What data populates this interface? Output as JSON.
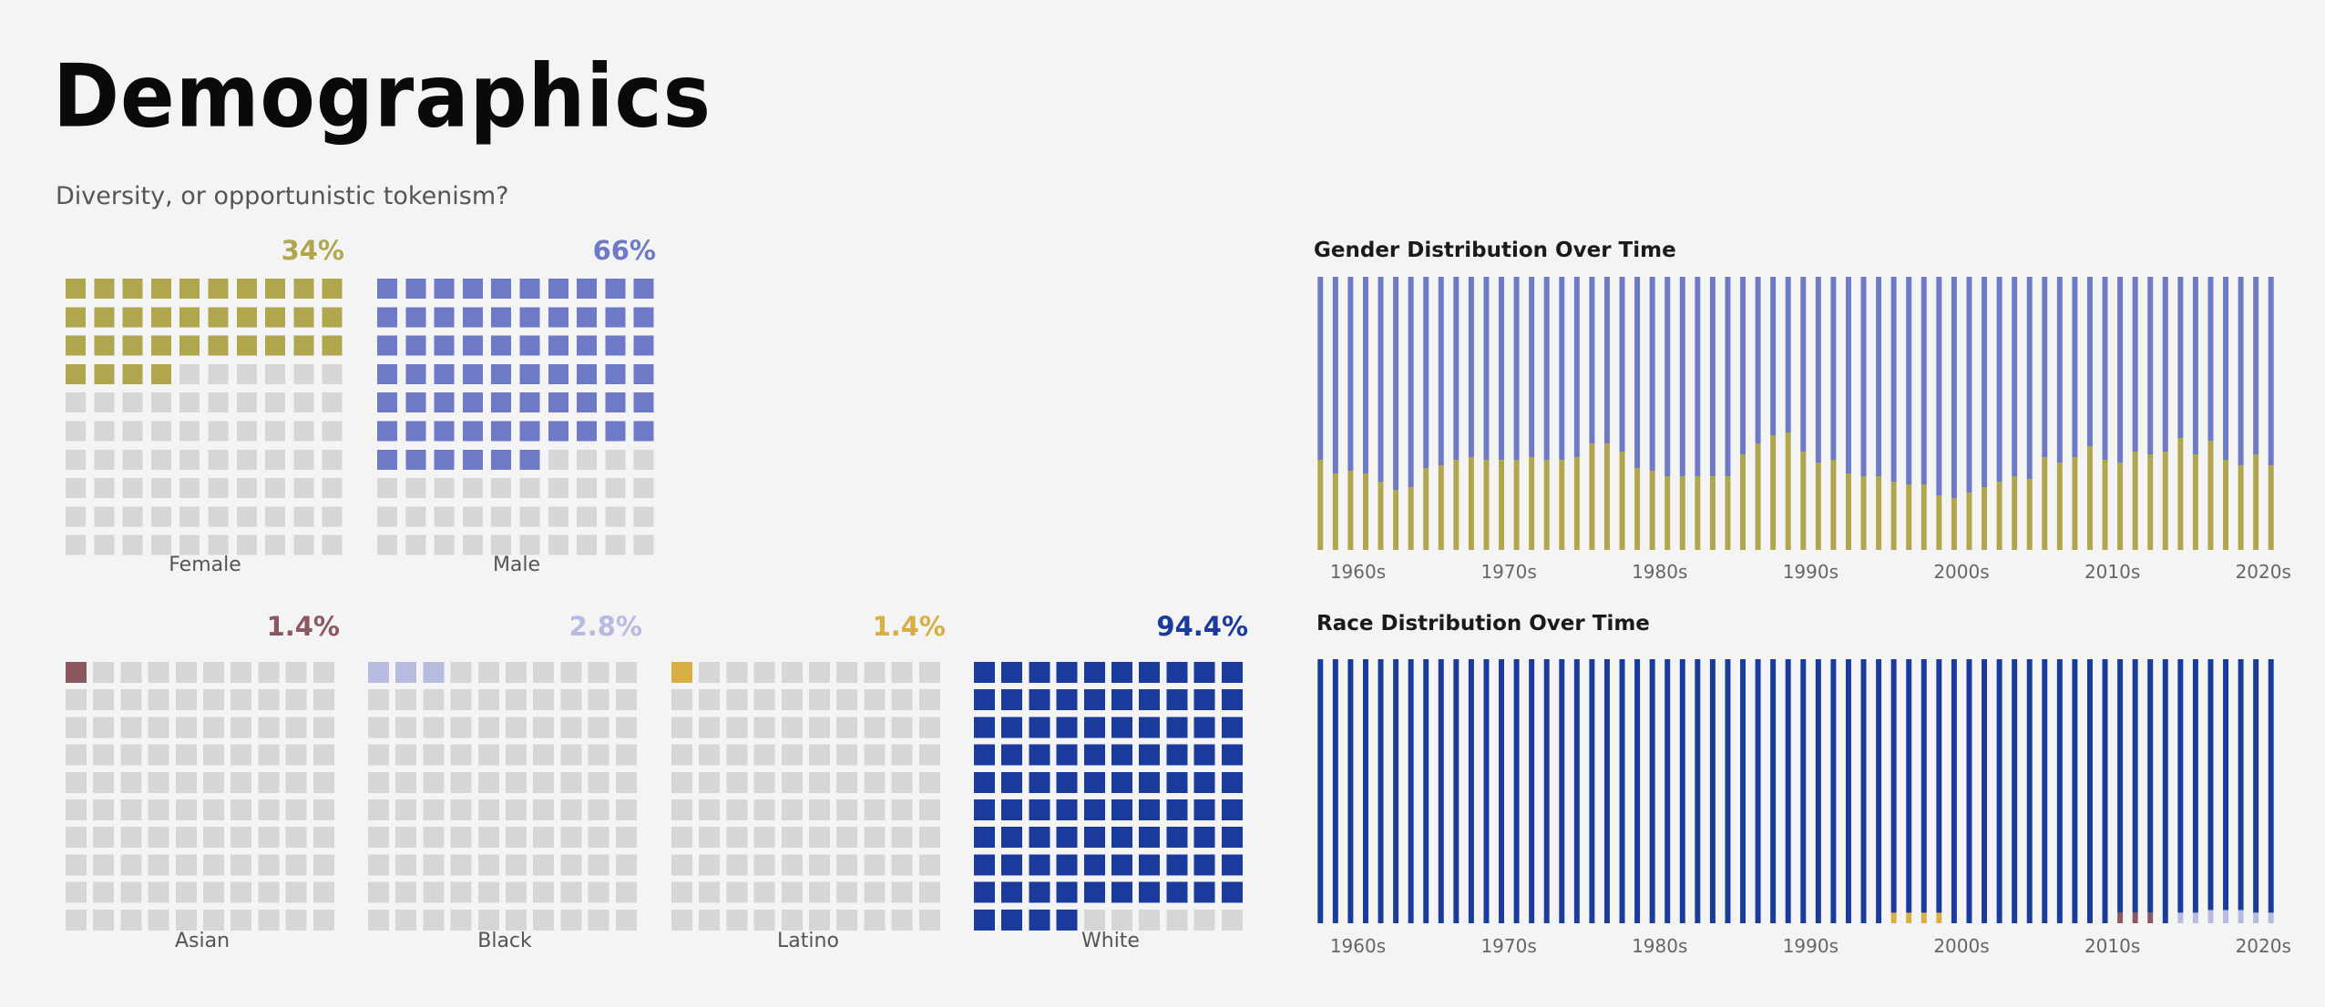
{
  "header": {
    "title": "Demographics",
    "subtitle": "Diversity, or opportunistic tokenism?"
  },
  "colors": {
    "female": "#b0a64e",
    "male": "#6e79c8",
    "asian": "#8c5860",
    "black": "#b8bbe0",
    "latino": "#d8ae45",
    "white": "#1a3a9c",
    "empty": "#d6d6d6"
  },
  "waffles": [
    {
      "id": "female",
      "label": "Female",
      "percent_text": "34%",
      "filled": 34,
      "color_key": "female"
    },
    {
      "id": "male",
      "label": "Male",
      "percent_text": "66%",
      "filled": 66,
      "color_key": "male"
    },
    {
      "id": "asian",
      "label": "Asian",
      "percent_text": "1.4%",
      "filled": 1,
      "color_key": "asian"
    },
    {
      "id": "black",
      "label": "Black",
      "percent_text": "2.8%",
      "filled": 3,
      "color_key": "black"
    },
    {
      "id": "latino",
      "label": "Latino",
      "percent_text": "1.4%",
      "filled": 1,
      "color_key": "latino"
    },
    {
      "id": "white",
      "label": "White",
      "percent_text": "94.4%",
      "filled": 94,
      "color_key": "white"
    }
  ],
  "chart_data": [
    {
      "type": "bar",
      "stacked": true,
      "title": "Gender Distribution Over Time",
      "x_ticks": [
        "1960s",
        "1970s",
        "1980s",
        "1990s",
        "2000s",
        "2010s",
        "2020s"
      ],
      "ylim": [
        0,
        1
      ],
      "series": [
        {
          "name": "Female",
          "color_key": "female",
          "values": [
            0.33,
            0.28,
            0.29,
            0.28,
            0.25,
            0.22,
            0.23,
            0.3,
            0.31,
            0.33,
            0.34,
            0.33,
            0.33,
            0.33,
            0.34,
            0.33,
            0.33,
            0.34,
            0.39,
            0.39,
            0.36,
            0.3,
            0.29,
            0.27,
            0.27,
            0.27,
            0.27,
            0.27,
            0.35,
            0.39,
            0.42,
            0.43,
            0.36,
            0.32,
            0.33,
            0.28,
            0.27,
            0.27,
            0.25,
            0.24,
            0.24,
            0.2,
            0.19,
            0.21,
            0.23,
            0.25,
            0.27,
            0.26,
            0.34,
            0.32,
            0.34,
            0.38,
            0.33,
            0.32,
            0.36,
            0.35,
            0.36,
            0.41,
            0.35,
            0.4,
            0.33,
            0.31,
            0.35,
            0.31
          ]
        },
        {
          "name": "Male",
          "color_key": "male",
          "values": [
            0.67,
            0.72,
            0.71,
            0.72,
            0.75,
            0.78,
            0.77,
            0.7,
            0.69,
            0.67,
            0.66,
            0.67,
            0.67,
            0.67,
            0.66,
            0.67,
            0.67,
            0.66,
            0.61,
            0.61,
            0.64,
            0.7,
            0.71,
            0.73,
            0.73,
            0.73,
            0.73,
            0.73,
            0.65,
            0.61,
            0.58,
            0.57,
            0.64,
            0.68,
            0.67,
            0.72,
            0.73,
            0.73,
            0.75,
            0.76,
            0.76,
            0.8,
            0.81,
            0.79,
            0.77,
            0.75,
            0.73,
            0.74,
            0.66,
            0.68,
            0.66,
            0.62,
            0.67,
            0.68,
            0.64,
            0.65,
            0.64,
            0.59,
            0.65,
            0.6,
            0.67,
            0.69,
            0.65,
            0.69
          ]
        }
      ]
    },
    {
      "type": "bar",
      "stacked": true,
      "title": "Race Distribution Over Time",
      "x_ticks": [
        "1960s",
        "1970s",
        "1980s",
        "1990s",
        "2000s",
        "2010s",
        "2020s"
      ],
      "ylim": [
        0,
        1
      ],
      "series": [
        {
          "name": "Asian",
          "color_key": "asian",
          "values": [
            0,
            0,
            0,
            0,
            0,
            0,
            0,
            0,
            0,
            0,
            0,
            0,
            0,
            0,
            0,
            0,
            0,
            0,
            0,
            0,
            0,
            0,
            0,
            0,
            0,
            0,
            0,
            0,
            0,
            0,
            0,
            0,
            0,
            0,
            0,
            0,
            0,
            0,
            0,
            0,
            0,
            0,
            0,
            0,
            0,
            0,
            0,
            0,
            0,
            0,
            0,
            0,
            0,
            0.04,
            0.04,
            0.04,
            0,
            0,
            0,
            0,
            0,
            0,
            0,
            0
          ]
        },
        {
          "name": "Black",
          "color_key": "black",
          "values": [
            0,
            0,
            0,
            0,
            0,
            0,
            0,
            0,
            0,
            0,
            0,
            0,
            0,
            0,
            0,
            0,
            0,
            0,
            0,
            0,
            0,
            0,
            0,
            0,
            0,
            0,
            0,
            0,
            0,
            0,
            0,
            0,
            0,
            0,
            0,
            0,
            0,
            0,
            0,
            0,
            0,
            0,
            0,
            0,
            0,
            0,
            0,
            0,
            0,
            0,
            0,
            0,
            0,
            0,
            0,
            0,
            0,
            0.04,
            0.04,
            0.05,
            0.05,
            0.05,
            0.04,
            0.04
          ]
        },
        {
          "name": "Latino",
          "color_key": "latino",
          "values": [
            0,
            0,
            0,
            0,
            0,
            0,
            0,
            0,
            0,
            0,
            0,
            0,
            0,
            0,
            0,
            0,
            0,
            0,
            0,
            0,
            0,
            0,
            0,
            0,
            0,
            0,
            0,
            0,
            0,
            0,
            0,
            0,
            0,
            0,
            0,
            0,
            0,
            0,
            0.04,
            0.04,
            0.04,
            0.04,
            0,
            0,
            0,
            0,
            0,
            0,
            0,
            0,
            0,
            0,
            0,
            0,
            0,
            0,
            0,
            0,
            0,
            0,
            0,
            0,
            0,
            0
          ]
        },
        {
          "name": "White",
          "color_key": "white",
          "values": [
            1,
            1,
            1,
            1,
            1,
            1,
            1,
            1,
            1,
            1,
            1,
            1,
            1,
            1,
            1,
            1,
            1,
            1,
            1,
            1,
            1,
            1,
            1,
            1,
            1,
            1,
            1,
            1,
            1,
            1,
            1,
            1,
            1,
            1,
            1,
            1,
            1,
            1,
            0.96,
            0.96,
            0.96,
            0.96,
            1,
            1,
            1,
            1,
            1,
            1,
            1,
            1,
            1,
            1,
            1,
            0.96,
            0.96,
            0.96,
            1,
            0.96,
            0.96,
            0.95,
            0.95,
            0.95,
            0.96,
            0.96
          ]
        }
      ]
    }
  ]
}
